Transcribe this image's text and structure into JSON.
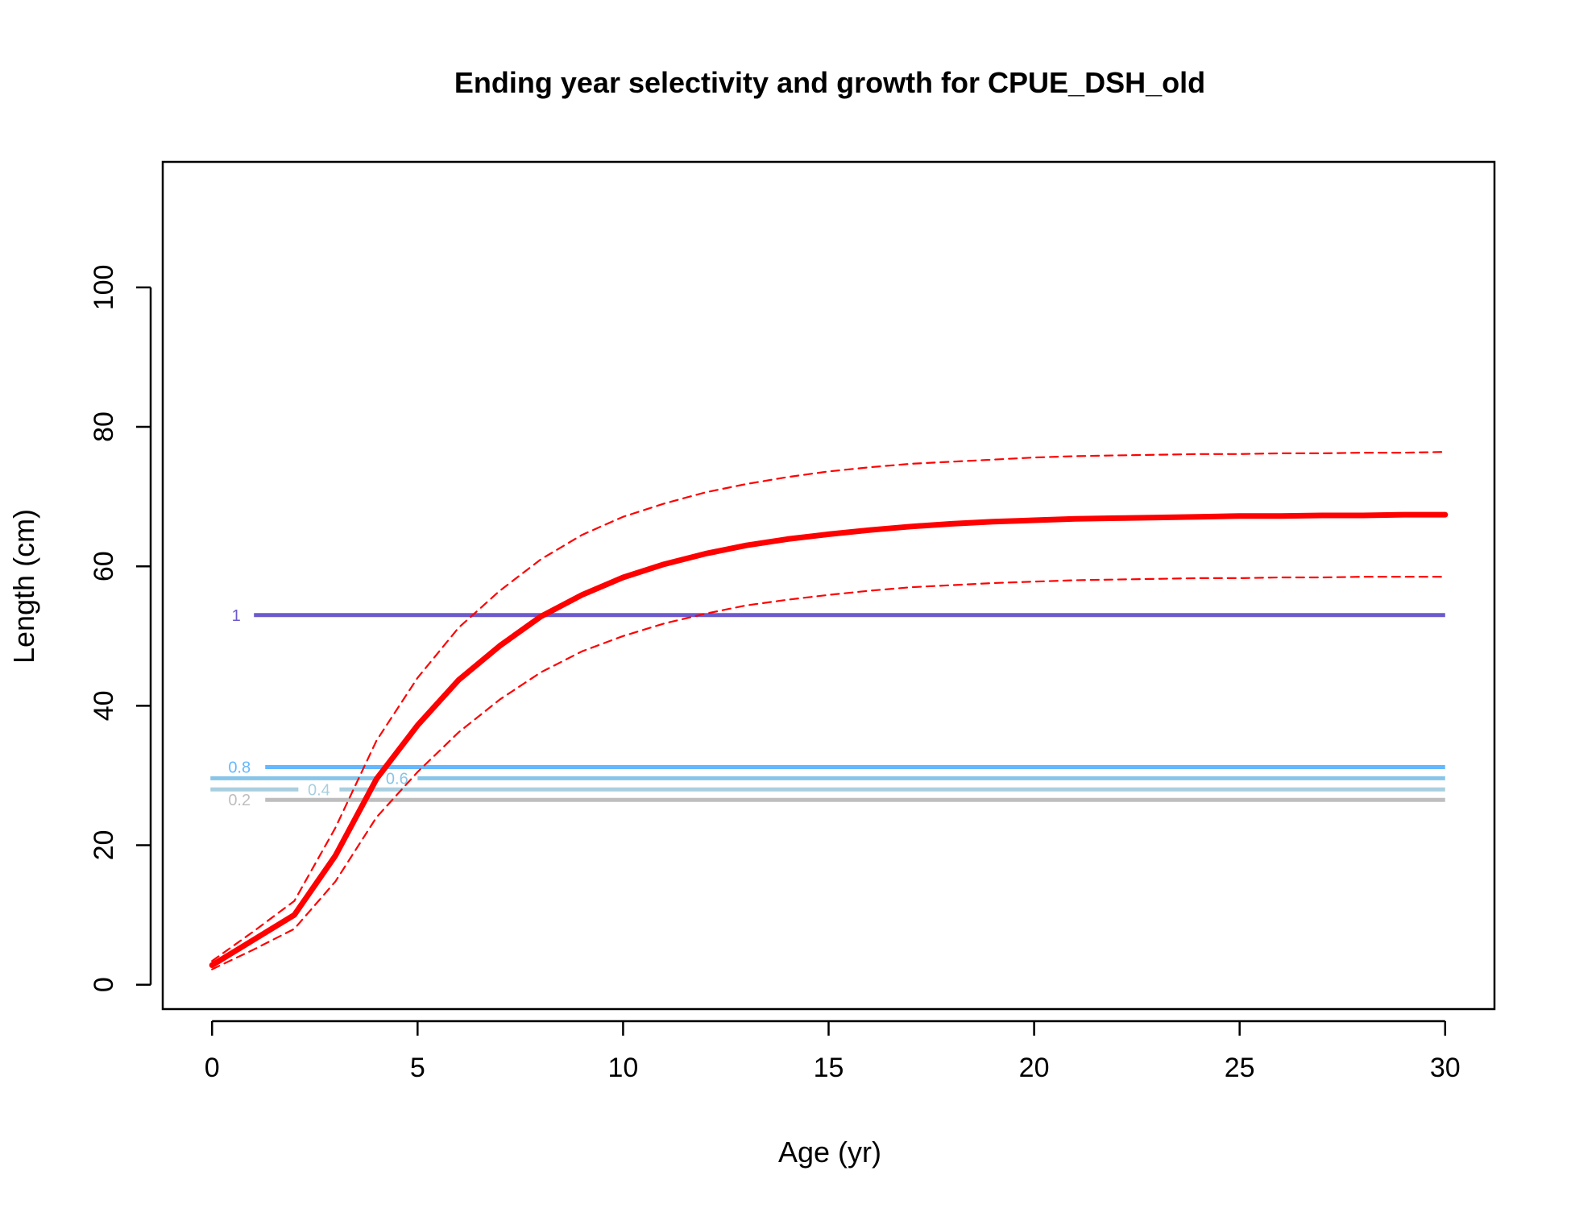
{
  "chart_data": {
    "type": "line",
    "title": "Ending year selectivity and growth for CPUE_DSH_old",
    "xlabel": "Age (yr)",
    "ylabel": "Length (cm)",
    "xlim": [
      -1.2,
      31.2
    ],
    "ylim": [
      -3.5,
      118
    ],
    "x_ticks": [
      0,
      5,
      10,
      15,
      20,
      25,
      30
    ],
    "y_ticks": [
      0,
      20,
      40,
      60,
      80,
      100
    ],
    "grid": false,
    "legend": "none",
    "series": [
      {
        "role": "growth_mean",
        "color": "#ff0000",
        "style": "solid",
        "x": [
          0,
          1,
          2,
          3,
          4,
          5,
          6,
          7,
          8,
          9,
          10,
          11,
          12,
          13,
          14,
          15,
          16,
          17,
          18,
          19,
          20,
          21,
          22,
          23,
          24,
          25,
          26,
          27,
          28,
          29,
          30
        ],
        "y": [
          2.8,
          6.4,
          10.0,
          18.5,
          29.5,
          37.2,
          43.7,
          48.6,
          52.8,
          55.9,
          58.4,
          60.3,
          61.8,
          63.0,
          63.9,
          64.6,
          65.2,
          65.7,
          66.1,
          66.4,
          66.6,
          66.8,
          66.9,
          67.0,
          67.1,
          67.2,
          67.2,
          67.3,
          67.3,
          67.4,
          67.4
        ]
      },
      {
        "role": "growth_upper",
        "color": "#ff0000",
        "style": "dashed",
        "x": [
          0,
          1,
          2,
          3,
          4,
          5,
          6,
          7,
          8,
          9,
          10,
          11,
          12,
          13,
          14,
          15,
          16,
          17,
          18,
          19,
          20,
          21,
          22,
          23,
          24,
          25,
          26,
          27,
          28,
          29,
          30
        ],
        "y": [
          3.4,
          7.6,
          12.0,
          22.5,
          35.0,
          44.0,
          51.2,
          56.5,
          61.0,
          64.5,
          67.1,
          69.0,
          70.6,
          71.8,
          72.8,
          73.6,
          74.2,
          74.7,
          75.0,
          75.3,
          75.6,
          75.8,
          75.9,
          76.0,
          76.1,
          76.1,
          76.2,
          76.2,
          76.3,
          76.3,
          76.4
        ]
      },
      {
        "role": "growth_lower",
        "color": "#ff0000",
        "style": "dashed",
        "x": [
          0,
          1,
          2,
          3,
          4,
          5,
          6,
          7,
          8,
          9,
          10,
          11,
          12,
          13,
          14,
          15,
          16,
          17,
          18,
          19,
          20,
          21,
          22,
          23,
          24,
          25,
          26,
          27,
          28,
          29,
          30
        ],
        "y": [
          2.2,
          5.0,
          8.0,
          14.8,
          24.0,
          30.5,
          36.2,
          40.9,
          44.8,
          47.8,
          50.0,
          51.8,
          53.2,
          54.4,
          55.2,
          55.9,
          56.5,
          57.0,
          57.3,
          57.6,
          57.8,
          58.0,
          58.1,
          58.2,
          58.3,
          58.3,
          58.4,
          58.4,
          58.5,
          58.5,
          58.5
        ]
      }
    ],
    "selectivity_contours": [
      {
        "label": "1",
        "y": 53.0,
        "color": "#6a5acd"
      },
      {
        "label": "0.8",
        "y": 31.2,
        "color": "#63b8ff"
      },
      {
        "label": "0.6",
        "y": 29.6,
        "color": "#87c5e8"
      },
      {
        "label": "0.4",
        "y": 28.0,
        "color": "#a9cfdf"
      },
      {
        "label": "0.2",
        "y": 26.5,
        "color": "#bebebe"
      }
    ]
  }
}
